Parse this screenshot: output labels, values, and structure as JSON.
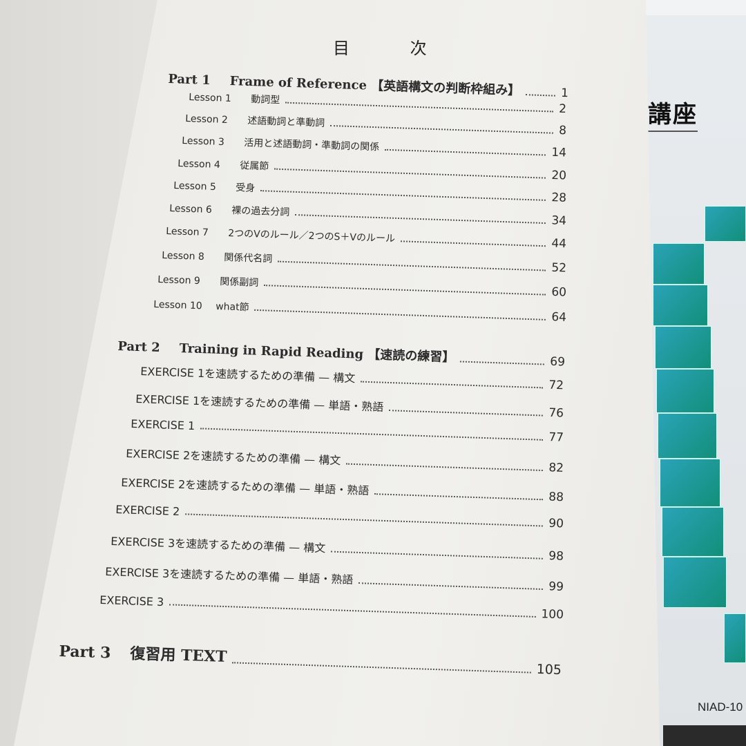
{
  "toc": {
    "title": "目 次",
    "part1": {
      "number": "Part 1",
      "title": "Frame of Reference 【英語構文の判断枠組み】",
      "page": "1"
    },
    "lessons": [
      {
        "number": "Lesson 1",
        "title": "動詞型",
        "page": "2"
      },
      {
        "number": "Lesson 2",
        "title": "述語動詞と準動詞",
        "page": "8"
      },
      {
        "number": "Lesson 3",
        "title": "活用と述語動詞・準動詞の関係",
        "page": "14"
      },
      {
        "number": "Lesson 4",
        "title": "従属節",
        "page": "20"
      },
      {
        "number": "Lesson 5",
        "title": "受身",
        "page": "28"
      },
      {
        "number": "Lesson 6",
        "title": "裸の過去分詞",
        "page": "34"
      },
      {
        "number": "Lesson 7",
        "title": "2つのVのルール／2つのS＋Vのルール",
        "page": "44"
      },
      {
        "number": "Lesson 8",
        "title": "関係代名詞",
        "page": "52"
      },
      {
        "number": "Lesson 9",
        "title": "関係副詞",
        "page": "60"
      },
      {
        "number": "Lesson 10",
        "title": "what節",
        "page": "64"
      }
    ],
    "part2": {
      "number": "Part 2",
      "title": "Training in Rapid Reading 【速読の練習】",
      "page": "69"
    },
    "exercises": [
      {
        "title": "EXERCISE 1を速読するための準備 — 構文",
        "page": "72"
      },
      {
        "title": "EXERCISE 1を速読するための準備 — 単語・熟語",
        "page": "76"
      },
      {
        "title": "EXERCISE 1",
        "page": "77"
      },
      {
        "title": "EXERCISE 2を速読するための準備 — 構文",
        "page": "82"
      },
      {
        "title": "EXERCISE 2を速読するための準備 — 単語・熟語",
        "page": "88"
      },
      {
        "title": "EXERCISE 2",
        "page": "90"
      },
      {
        "title": "EXERCISE 3を速読するための準備 — 構文",
        "page": "98"
      },
      {
        "title": "EXERCISE 3を速読するための準備 — 単語・熟語",
        "page": "99"
      },
      {
        "title": "EXERCISE 3",
        "page": "100"
      }
    ],
    "part3": {
      "number": "Part 3",
      "title": "復習用 TEXT",
      "page": "105"
    }
  },
  "cover": {
    "title": "講座",
    "code": "NIAD-10",
    "accent": "#1a9a8a"
  }
}
